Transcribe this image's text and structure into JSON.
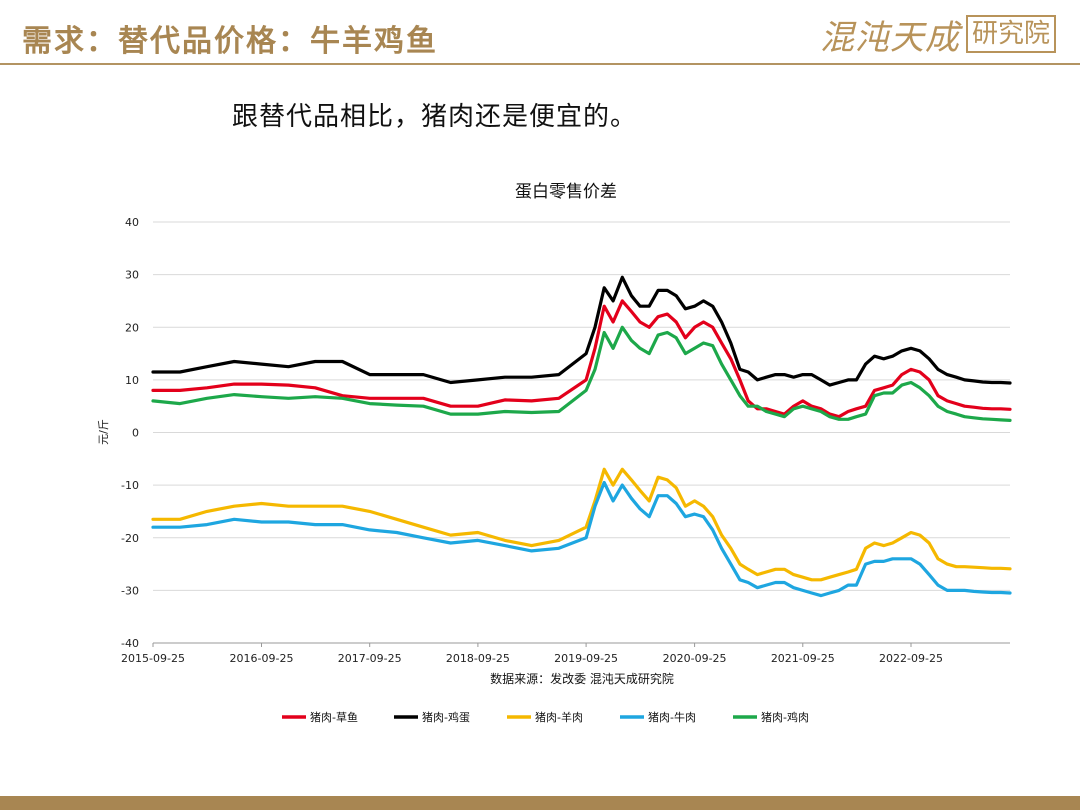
{
  "header": {
    "title": "需求：替代品价格：牛羊鸡鱼",
    "logo_script": "混沌天成",
    "logo_box": "研究院"
  },
  "subtitle": "跟替代品相比，猪肉还是便宜的。",
  "colors": {
    "gold": "#A88652",
    "series": [
      "#E3001B",
      "#000000",
      "#F5B800",
      "#1EA6E0",
      "#1DA84A"
    ]
  },
  "chart_data": {
    "type": "line",
    "title": "蛋白零售价差",
    "ylabel": "元/斤",
    "source": "数据来源：发改委 混沌天成研究院",
    "ylim": [
      -40,
      40
    ],
    "yticks": [
      40,
      30,
      20,
      10,
      0,
      -10,
      -20,
      -30,
      -40
    ],
    "xlim": [
      "2015-09-25",
      "2023-08-25"
    ],
    "xticks": [
      "2015-09-25",
      "2016-09-25",
      "2017-09-25",
      "2018-09-25",
      "2019-09-25",
      "2020-09-25",
      "2021-09-25",
      "2022-09-25"
    ],
    "grid": true,
    "legend_position": "bottom",
    "x": [
      "2015-09",
      "2015-12",
      "2016-03",
      "2016-06",
      "2016-09",
      "2016-12",
      "2017-03",
      "2017-06",
      "2017-09",
      "2017-12",
      "2018-03",
      "2018-06",
      "2018-09",
      "2018-12",
      "2019-03",
      "2019-06",
      "2019-09",
      "2019-10",
      "2019-11",
      "2019-12",
      "2020-01",
      "2020-02",
      "2020-03",
      "2020-04",
      "2020-05",
      "2020-06",
      "2020-07",
      "2020-08",
      "2020-09",
      "2020-10",
      "2020-11",
      "2020-12",
      "2021-01",
      "2021-02",
      "2021-03",
      "2021-04",
      "2021-05",
      "2021-06",
      "2021-07",
      "2021-08",
      "2021-09",
      "2021-10",
      "2021-11",
      "2021-12",
      "2022-01",
      "2022-02",
      "2022-03",
      "2022-04",
      "2022-05",
      "2022-06",
      "2022-07",
      "2022-08",
      "2022-09",
      "2022-10",
      "2022-11",
      "2022-12",
      "2023-01",
      "2023-02",
      "2023-03",
      "2023-04",
      "2023-05",
      "2023-06",
      "2023-07",
      "2023-08"
    ],
    "series": [
      {
        "name": "猪肉-草鱼",
        "color": "#E3001B",
        "values": [
          8,
          8,
          8.5,
          9.2,
          9.2,
          9,
          8.5,
          7,
          6.5,
          6.5,
          6.5,
          5,
          5,
          6.2,
          6,
          6.5,
          10,
          16,
          24,
          21,
          25,
          23,
          21,
          20,
          22,
          22.5,
          21,
          18,
          20,
          21,
          20,
          17,
          14,
          10,
          6,
          4.5,
          4.5,
          4,
          3.5,
          5,
          6,
          5,
          4.5,
          3.5,
          3,
          4,
          4.5,
          5,
          8,
          8.5,
          9,
          11,
          12,
          11.5,
          10,
          7,
          6,
          5.5,
          5,
          4.8,
          4.6,
          4.5,
          4.5,
          4.4
        ]
      },
      {
        "name": "猪肉-鸡蛋",
        "color": "#000000",
        "values": [
          11.5,
          11.5,
          12.5,
          13.5,
          13,
          12.5,
          13.5,
          13.5,
          11,
          11,
          11,
          9.5,
          10,
          10.5,
          10.5,
          11,
          15,
          20,
          27.5,
          25,
          29.5,
          26,
          24,
          24,
          27,
          27,
          26,
          23.5,
          24,
          25,
          24,
          21,
          17,
          12,
          11.5,
          10,
          10.5,
          11,
          11,
          10.5,
          11,
          11,
          10,
          9,
          9.5,
          10,
          10,
          13,
          14.5,
          14,
          14.5,
          15.5,
          16,
          15.5,
          14,
          12,
          11,
          10.5,
          10,
          9.8,
          9.6,
          9.5,
          9.5,
          9.4
        ]
      },
      {
        "name": "猪肉-羊肉",
        "color": "#F5B800",
        "values": [
          -16.5,
          -16.5,
          -15,
          -14,
          -13.5,
          -14,
          -14,
          -14,
          -15,
          -16.5,
          -18,
          -19.5,
          -19,
          -20.5,
          -21.5,
          -20.5,
          -18,
          -13,
          -7,
          -10,
          -7,
          -9,
          -11,
          -13,
          -8.5,
          -9,
          -10.5,
          -14,
          -13,
          -14,
          -16,
          -19.5,
          -22,
          -25,
          -26,
          -27,
          -26.5,
          -26,
          -26,
          -27,
          -27.5,
          -28,
          -28,
          -27.5,
          -27,
          -26.5,
          -26,
          -22,
          -21,
          -21.5,
          -21,
          -20,
          -19,
          -19.5,
          -21,
          -24,
          -25,
          -25.5,
          -25.5,
          -25.6,
          -25.7,
          -25.8,
          -25.8,
          -25.9
        ]
      },
      {
        "name": "猪肉-牛肉",
        "color": "#1EA6E0",
        "values": [
          -18,
          -18,
          -17.5,
          -16.5,
          -17,
          -17,
          -17.5,
          -17.5,
          -18.5,
          -19,
          -20,
          -21,
          -20.5,
          -21.5,
          -22.5,
          -22,
          -20,
          -14,
          -9.5,
          -13,
          -10,
          -12.5,
          -14.5,
          -16,
          -12,
          -12,
          -13.5,
          -16,
          -15.5,
          -16,
          -18.5,
          -22,
          -25,
          -28,
          -28.5,
          -29.5,
          -29,
          -28.5,
          -28.5,
          -29.5,
          -30,
          -30.5,
          -31,
          -30.5,
          -30,
          -29,
          -29,
          -25,
          -24.5,
          -24.5,
          -24,
          -24,
          -24,
          -25,
          -27,
          -29,
          -30,
          -30,
          -30,
          -30.2,
          -30.3,
          -30.4,
          -30.4,
          -30.5
        ]
      },
      {
        "name": "猪肉-鸡肉",
        "color": "#1DA84A",
        "values": [
          6,
          5.5,
          6.5,
          7.2,
          6.8,
          6.5,
          6.8,
          6.5,
          5.5,
          5.2,
          5,
          3.5,
          3.5,
          4,
          3.8,
          4,
          8,
          12,
          19,
          16,
          20,
          17.5,
          16,
          15,
          18.5,
          19,
          18,
          15,
          16,
          17,
          16.5,
          13,
          10,
          7,
          5,
          5,
          4,
          3.5,
          3,
          4.5,
          5,
          4.5,
          4,
          3,
          2.5,
          2.5,
          3,
          3.5,
          7,
          7.5,
          7.5,
          9,
          9.5,
          8.5,
          7,
          5,
          4,
          3.5,
          3,
          2.8,
          2.6,
          2.5,
          2.4,
          2.3
        ]
      }
    ]
  }
}
